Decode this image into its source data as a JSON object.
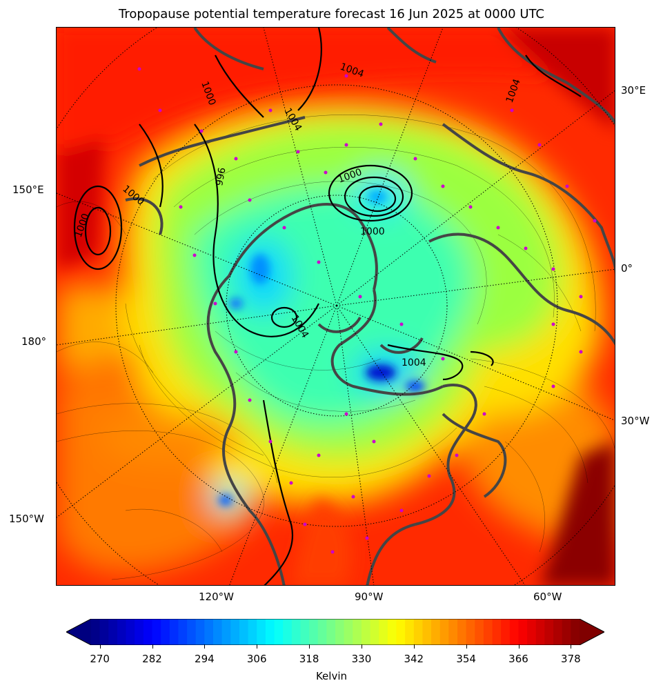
{
  "title": "Tropopause potential temperature forecast 16 Jun 2025 at 0000 UTC",
  "map": {
    "longitude_labels": {
      "e30": "30°E",
      "e150": "150°E",
      "zero": "0°",
      "lon180": "180°",
      "w30": "30°W",
      "w150": "150°W",
      "w120": "120°W",
      "w90": "90°W",
      "w60": "60°W"
    },
    "pressure_contour_labels": [
      "1004",
      "1000",
      "996",
      "1000",
      "1004",
      "1000",
      "1004",
      "1000",
      "1004",
      "1000",
      "1004"
    ],
    "palette": {
      "cold": "#00008b",
      "cool": "#00e5ff",
      "mid": "#aaff33",
      "warm": "#ffdd00",
      "hot": "#ff3300",
      "extreme": "#7f0000",
      "coastline": "#444444",
      "stations": "#cc00cc"
    }
  },
  "colorbar": {
    "label": "Kelvin",
    "ticks": [
      "270",
      "282",
      "294",
      "306",
      "318",
      "330",
      "342",
      "354",
      "366",
      "378"
    ],
    "range": [
      268,
      380
    ],
    "colormap": "jet"
  }
}
